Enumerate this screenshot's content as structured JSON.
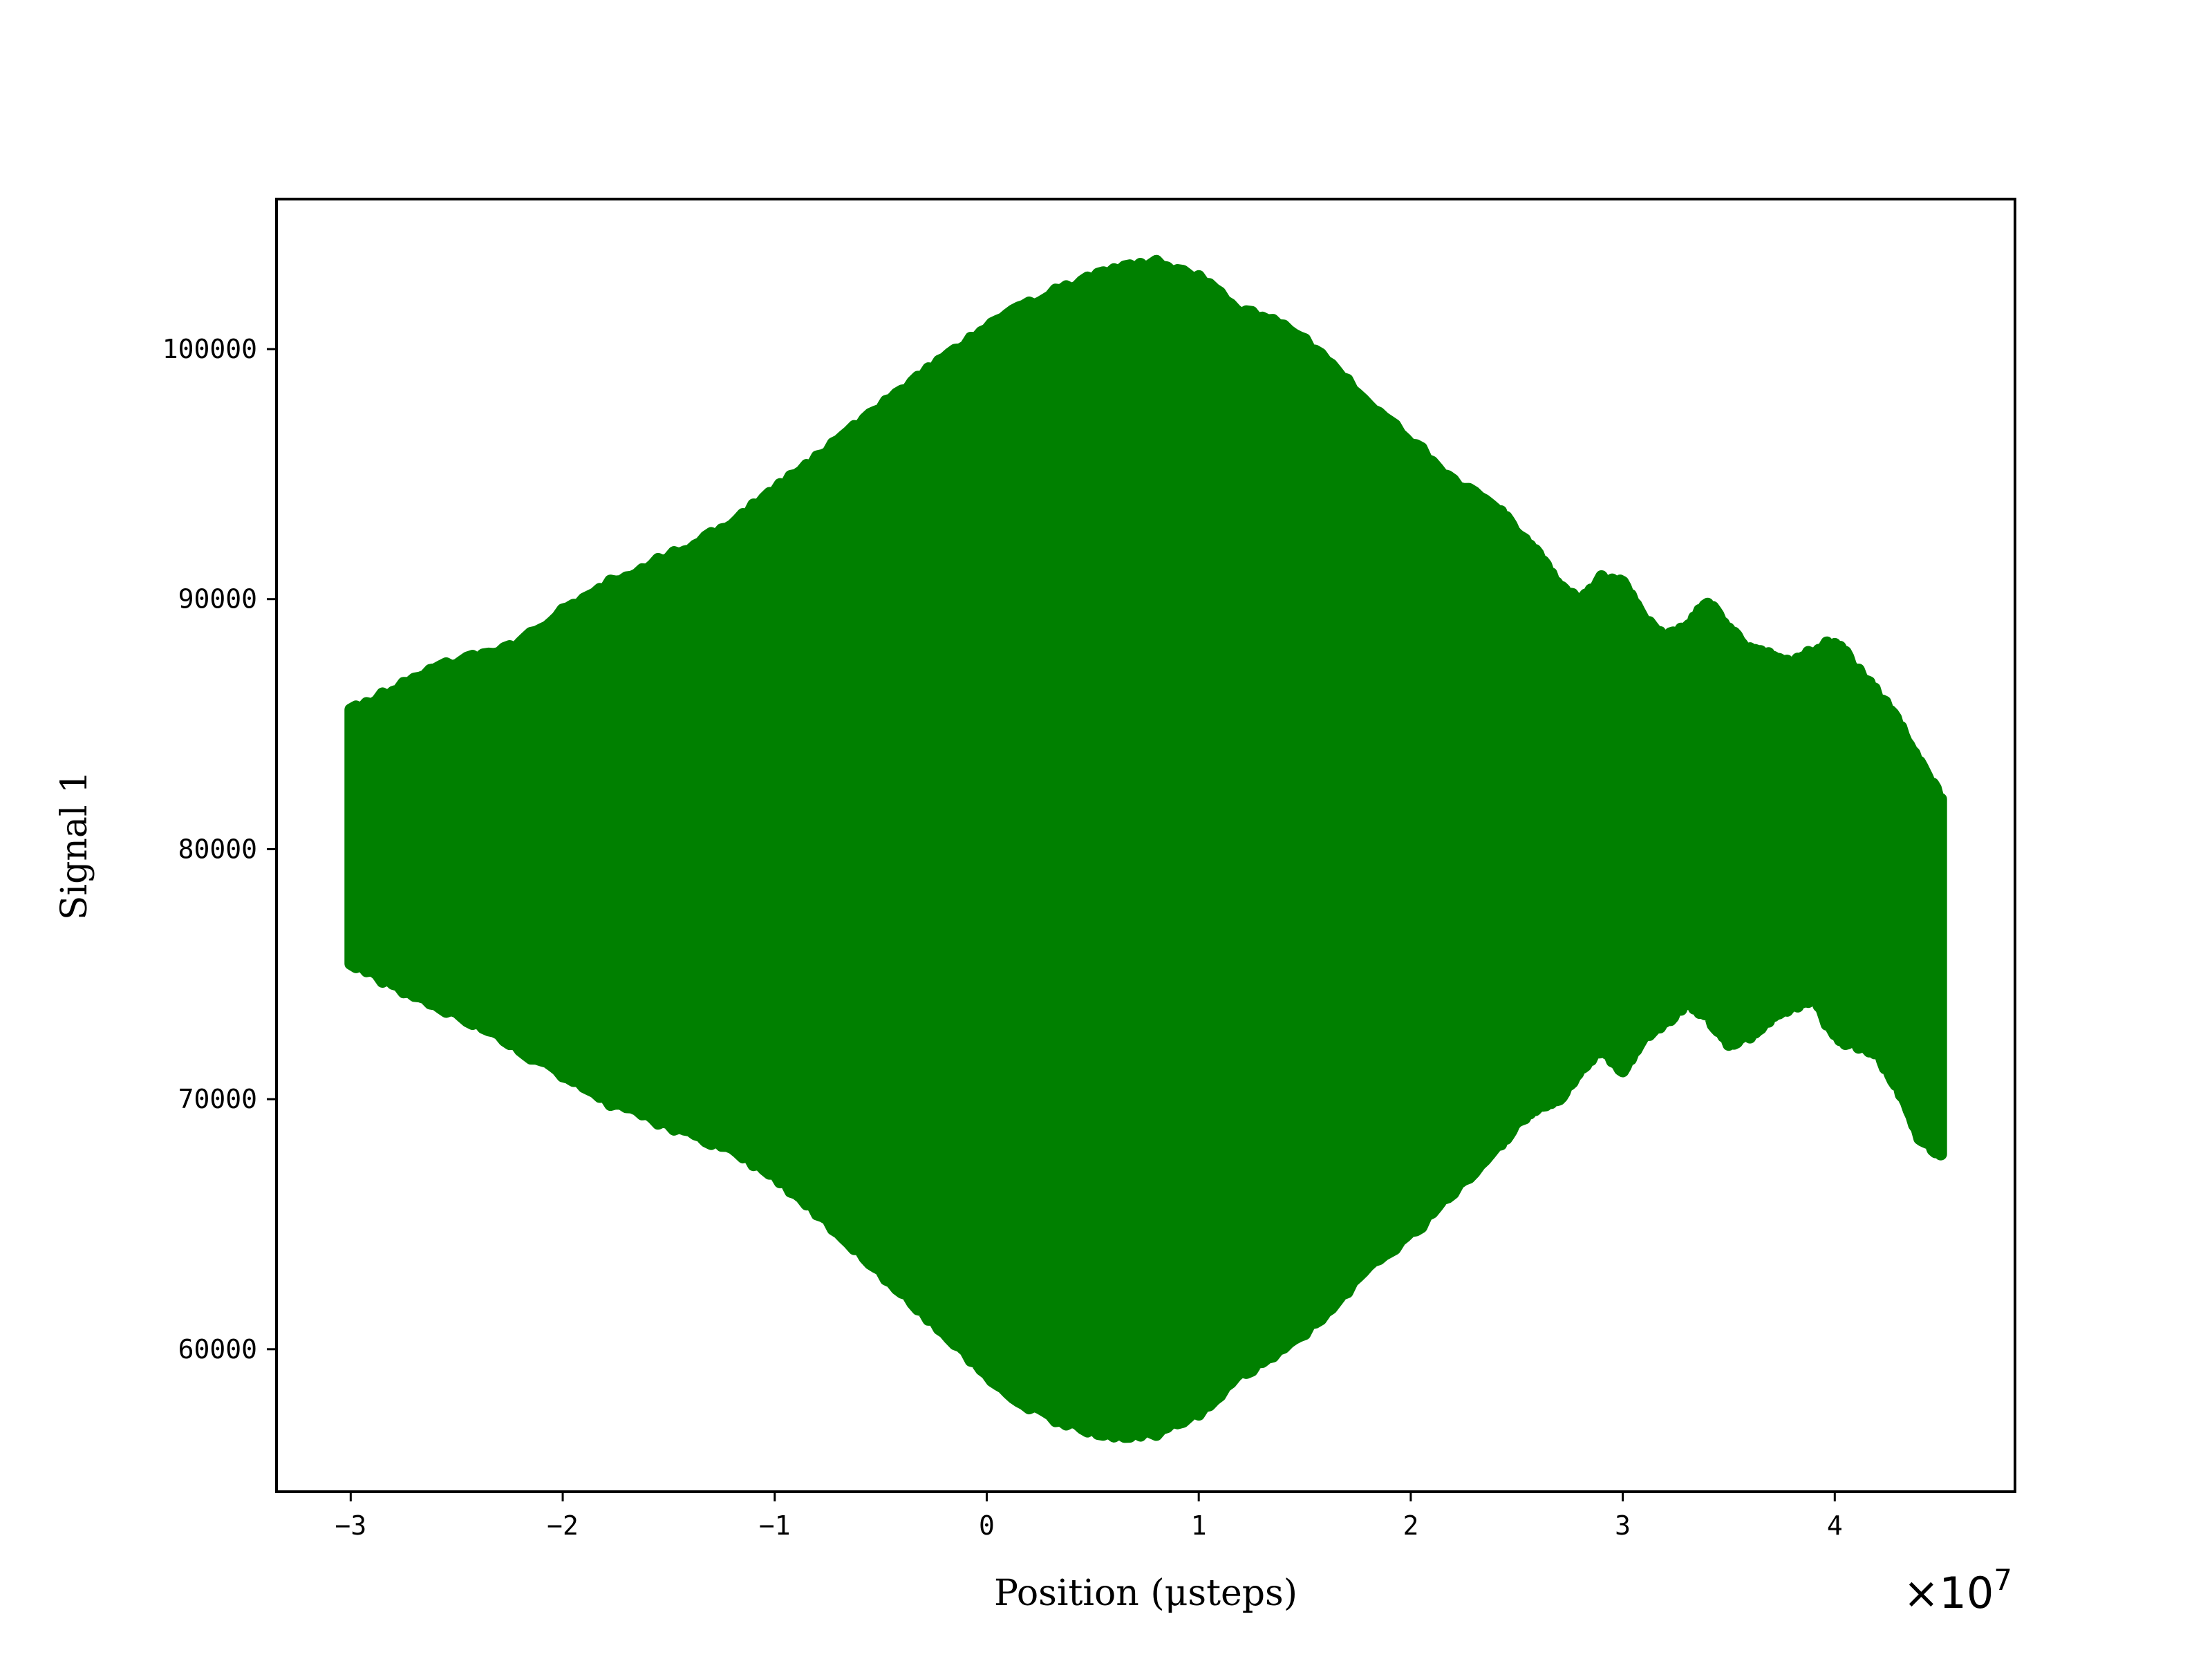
{
  "chart_data": {
    "type": "scatter",
    "title": "",
    "xlabel": "Position (μsteps)",
    "ylabel": "Signal 1",
    "x_multiplier_base": "×10",
    "x_multiplier_exp": "7",
    "x_scale": 10000000,
    "xlim": [
      -33500000,
      48500000
    ],
    "ylim": [
      54300,
      106000
    ],
    "x_ticks": [
      -3,
      -2,
      -1,
      0,
      1,
      2,
      3,
      4
    ],
    "x_tick_labels": [
      "−3",
      "−2",
      "−1",
      "0",
      "1",
      "2",
      "3",
      "4"
    ],
    "y_ticks": [
      60000,
      70000,
      80000,
      90000,
      100000
    ],
    "y_tick_labels": [
      "60000",
      "70000",
      "80000",
      "90000",
      "100000"
    ],
    "grid": false,
    "legend": null,
    "color": "#008000",
    "series": [
      {
        "x": [
          -30000000,
          -28000000,
          -26000000,
          -24000000,
          -22000000,
          -20000000,
          -18000000,
          -16000000,
          -14000000,
          -12000000,
          -10000000,
          -8000000,
          -6000000,
          -4000000,
          -2000000,
          0,
          2000000,
          4000000,
          6000000,
          8000000,
          10000000,
          12000000,
          14000000,
          16000000,
          18000000,
          20000000,
          22000000,
          24000000,
          25000000,
          26000000,
          27000000,
          28000000,
          29000000,
          30000000,
          31000000,
          32000000,
          33000000,
          34000000,
          35000000,
          36000000,
          37000000,
          38000000,
          39000000,
          40000000,
          41000000,
          42000000,
          43000000,
          44000000,
          45000000
        ],
        "upper": [
          85500,
          86300,
          87200,
          87700,
          88200,
          89500,
          90500,
          91300,
          92000,
          93000,
          94300,
          95600,
          97000,
          98300,
          99600,
          100800,
          101800,
          102500,
          103200,
          103400,
          102800,
          101500,
          101000,
          99500,
          97800,
          96300,
          94700,
          93700,
          92700,
          91800,
          90500,
          89800,
          90800,
          90600,
          89300,
          88500,
          88800,
          89800,
          88800,
          87900,
          87700,
          87400,
          87900,
          88300,
          87200,
          86200,
          85000,
          83400,
          82000
        ],
        "lower": [
          75500,
          74600,
          73800,
          73000,
          72000,
          71000,
          70000,
          69300,
          68700,
          68000,
          67000,
          65500,
          63900,
          62300,
          60700,
          59000,
          57700,
          57000,
          56500,
          56700,
          57500,
          59000,
          60000,
          61500,
          63300,
          64600,
          66300,
          68000,
          69000,
          69700,
          70000,
          71300,
          72000,
          71200,
          72400,
          73000,
          73900,
          73400,
          72200,
          72600,
          73300,
          73700,
          74100,
          72500,
          72200,
          71900,
          70500,
          68500,
          67800
        ]
      }
    ]
  }
}
